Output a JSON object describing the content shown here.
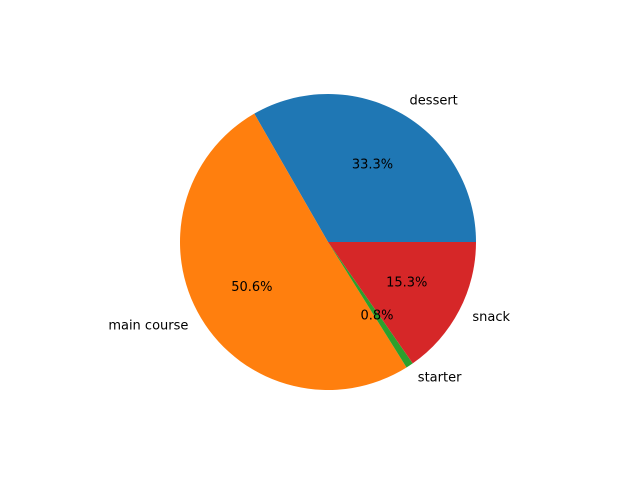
{
  "chart_data": {
    "type": "pie",
    "title": "",
    "start_angle": 0,
    "direction": "counterclockwise",
    "slices": [
      {
        "label": "dessert",
        "value": 33.3,
        "pct_label": "33.3%",
        "color": "#1f77b4"
      },
      {
        "label": "main course",
        "value": 50.6,
        "pct_label": "50.6%",
        "color": "#ff7f0e"
      },
      {
        "label": "starter",
        "value": 0.8,
        "pct_label": "0.8%",
        "color": "#2ca02c"
      },
      {
        "label": "snack",
        "value": 15.3,
        "pct_label": "15.3%",
        "color": "#d62728"
      }
    ]
  }
}
